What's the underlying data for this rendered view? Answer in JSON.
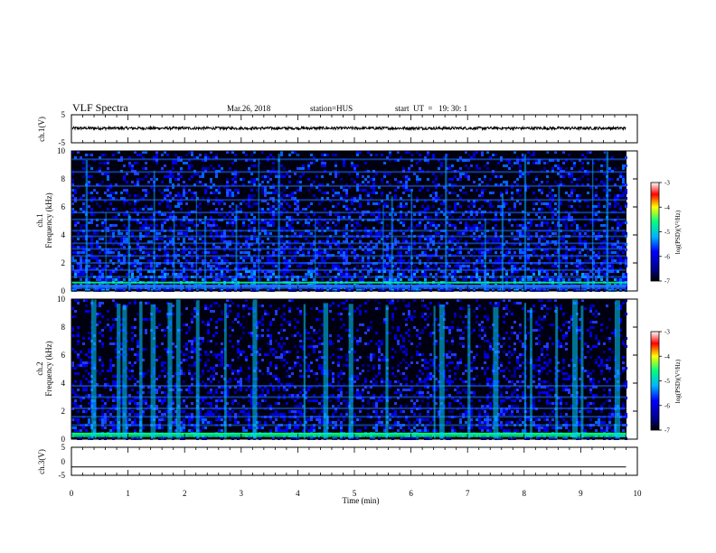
{
  "header": {
    "title": "VLF Spectra",
    "date": "Mar.26, 2018",
    "station": "station=HUS",
    "start": "start  UT  =   19: 30: 1"
  },
  "colors": {
    "background": "#ffffff",
    "spectrogram_floor": "#000010",
    "colormap": [
      "#000000",
      "#00008b",
      "#0000ff",
      "#00b4ff",
      "#00ff80",
      "#ffff00",
      "#ff0000",
      "#ffffff"
    ]
  },
  "chart_data": [
    {
      "type": "line",
      "panel": "ch.1 waveform",
      "ylabel": "ch.1(V)",
      "ylim": [
        -5,
        5
      ],
      "yticks": [
        "5",
        "-5"
      ],
      "xlim": [
        0,
        10
      ],
      "series": [
        {
          "values": "noise band around ~0.2 V, amplitude ~0.5 V, from t=0 to t=9.8 min"
        }
      ]
    },
    {
      "type": "heatmap",
      "panel": "ch.1 spectrogram",
      "ylabel": "ch.1\nFrequency (kHz)",
      "ylim": [
        0,
        10
      ],
      "yticks": [
        "0",
        "2",
        "4",
        "6",
        "8",
        "10"
      ],
      "xlim": [
        0,
        10
      ],
      "data_end_min": 9.8,
      "colorbar": {
        "label": "log(PSD)(V²/Hz)",
        "range": [
          -7,
          -3
        ],
        "ticks": [
          "-3",
          "-4",
          "-5",
          "-6",
          "-7"
        ]
      },
      "horizontal_lines_khz": [
        0.35,
        0.6,
        1.0,
        1.5,
        2.0,
        2.5,
        3.0,
        3.4,
        3.9,
        4.3,
        5.1,
        5.6,
        6.5,
        7.5,
        8.5,
        9.4
      ],
      "bursts_min": [
        0.25,
        0.6,
        1.0,
        1.45,
        1.8,
        2.2,
        2.35,
        2.9,
        3.3,
        3.65,
        4.3,
        5.5,
        5.65,
        6.0,
        6.6,
        7.3,
        7.6,
        8.0,
        8.6,
        9.2,
        9.45
      ]
    },
    {
      "type": "heatmap",
      "panel": "ch.2 spectrogram",
      "ylabel": "ch.2\nFrequency (kHz)",
      "ylim": [
        0,
        10
      ],
      "yticks": [
        "0",
        "2",
        "4",
        "6",
        "8",
        "10"
      ],
      "xlim": [
        0,
        10
      ],
      "data_end_min": 9.8,
      "colorbar": {
        "label": "log(PSD)(V²/Hz)",
        "range": [
          -7,
          -3
        ],
        "ticks": [
          "-3",
          "-4",
          "-5",
          "-6",
          "-7"
        ]
      },
      "horizontal_lines_khz": [
        0.4,
        1.0,
        1.6,
        2.2,
        3.0,
        3.8
      ],
      "bursts_min": [
        0.35,
        0.8,
        0.9,
        1.2,
        1.4,
        1.7,
        1.85,
        2.2,
        2.7,
        3.2,
        4.1,
        4.45,
        4.9,
        5.55,
        6.4,
        6.5,
        7.0,
        7.45,
        8.0,
        8.1,
        8.55,
        8.85,
        9.0,
        9.6
      ]
    },
    {
      "type": "line",
      "panel": "ch.3 waveform",
      "ylabel": "ch.3(V)",
      "ylim": [
        -5,
        5
      ],
      "yticks": [
        "5",
        "0",
        "-5"
      ],
      "xlim": [
        0,
        10
      ],
      "series": [
        {
          "values": "flat at about -2 V from t=0 to t=9.8 min"
        }
      ]
    }
  ],
  "xaxis": {
    "label": "Time  (min)",
    "ticks": [
      "0",
      "1",
      "2",
      "3",
      "4",
      "5",
      "6",
      "7",
      "8",
      "9",
      "10"
    ],
    "range": [
      0,
      10
    ]
  }
}
